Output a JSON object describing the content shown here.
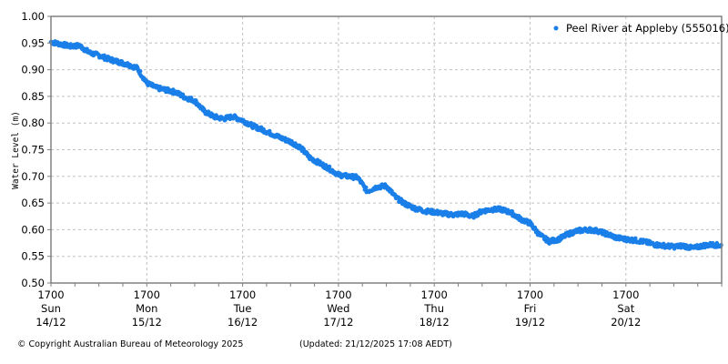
{
  "chart_data": {
    "type": "scatter",
    "title": "",
    "xlabel": "",
    "ylabel": "Water Level (m)",
    "ylim": [
      0.5,
      1.0
    ],
    "yticks": [
      "0.50",
      "0.55",
      "0.60",
      "0.65",
      "0.70",
      "0.75",
      "0.80",
      "0.85",
      "0.90",
      "0.95",
      "1.00"
    ],
    "xticks": [
      {
        "time": "1700",
        "day": "Sun",
        "date": "14/12"
      },
      {
        "time": "1700",
        "day": "Mon",
        "date": "15/12"
      },
      {
        "time": "1700",
        "day": "Tue",
        "date": "16/12"
      },
      {
        "time": "1700",
        "day": "Wed",
        "date": "17/12"
      },
      {
        "time": "1700",
        "day": "Thu",
        "date": "18/12"
      },
      {
        "time": "1700",
        "day": "Fri",
        "date": "19/12"
      },
      {
        "time": "1700",
        "day": "Sat",
        "date": "20/12"
      }
    ],
    "xrange_days": [
      0,
      7.0
    ],
    "grid": true,
    "legend_position": "top-right",
    "series": [
      {
        "name": "Peel River at Appleby (555016)",
        "color": "#1a7fe8",
        "x_days": [
          0.0,
          0.1,
          0.2,
          0.3,
          0.4,
          0.5,
          0.6,
          0.7,
          0.8,
          0.9,
          1.0,
          1.1,
          1.2,
          1.3,
          1.4,
          1.5,
          1.6,
          1.7,
          1.8,
          1.9,
          2.0,
          2.1,
          2.2,
          2.3,
          2.4,
          2.5,
          2.6,
          2.7,
          2.8,
          2.9,
          3.0,
          3.1,
          3.2,
          3.3,
          3.4,
          3.5,
          3.6,
          3.7,
          3.8,
          3.9,
          4.0,
          4.1,
          4.2,
          4.3,
          4.4,
          4.5,
          4.6,
          4.7,
          4.8,
          4.9,
          5.0,
          5.1,
          5.2,
          5.3,
          5.4,
          5.5,
          5.6,
          5.7,
          5.8,
          5.9,
          6.0,
          6.1,
          6.2,
          6.3,
          6.4,
          6.5,
          6.6,
          6.7,
          6.8,
          6.9,
          7.0
        ],
        "values": [
          0.952,
          0.948,
          0.944,
          0.945,
          0.932,
          0.927,
          0.92,
          0.915,
          0.91,
          0.903,
          0.875,
          0.866,
          0.862,
          0.858,
          0.848,
          0.842,
          0.822,
          0.812,
          0.808,
          0.812,
          0.805,
          0.795,
          0.788,
          0.78,
          0.772,
          0.765,
          0.755,
          0.735,
          0.725,
          0.715,
          0.703,
          0.7,
          0.698,
          0.672,
          0.68,
          0.682,
          0.66,
          0.648,
          0.64,
          0.635,
          0.633,
          0.63,
          0.628,
          0.63,
          0.625,
          0.635,
          0.638,
          0.638,
          0.632,
          0.62,
          0.612,
          0.59,
          0.578,
          0.582,
          0.592,
          0.598,
          0.6,
          0.598,
          0.592,
          0.585,
          0.582,
          0.58,
          0.577,
          0.572,
          0.57,
          0.568,
          0.57,
          0.565,
          0.57,
          0.572,
          0.57
        ]
      }
    ]
  },
  "legend": {
    "label": "Peel River at Appleby (555016)"
  },
  "footer": {
    "copyright": "© Copyright Australian Bureau of Meteorology 2025",
    "updated": "(Updated: 21/12/2025 17:08 AEDT)"
  }
}
